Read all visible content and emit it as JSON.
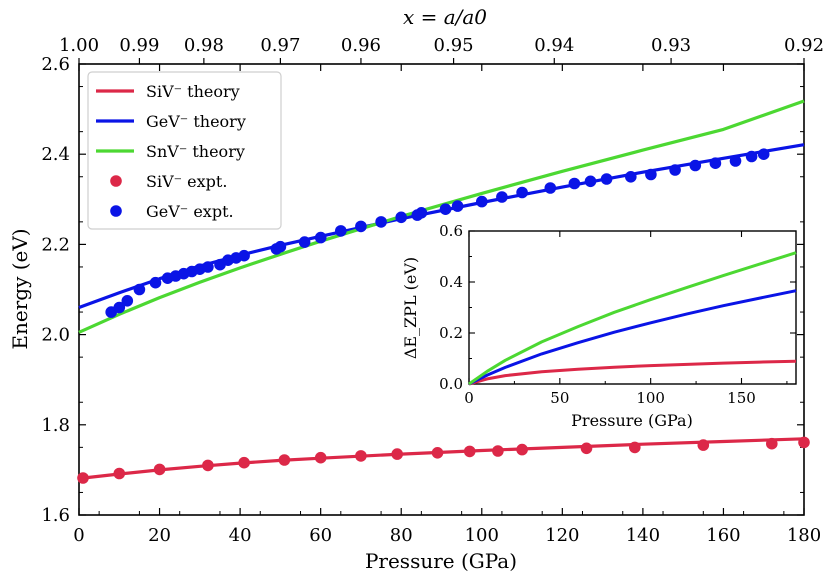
{
  "chart_data": {
    "type": "line",
    "xlabel": "Pressure (GPa)",
    "ylabel": "Energy (eV)",
    "top_xlabel": "x = a/a0",
    "xlim": [
      0,
      180
    ],
    "ylim": [
      1.6,
      2.6
    ],
    "xticks": [
      "0",
      "20",
      "40",
      "60",
      "80",
      "100",
      "120",
      "140",
      "160",
      "180"
    ],
    "yticks": [
      "1.6",
      "1.8",
      "2.0",
      "2.2",
      "2.4",
      "2.6"
    ],
    "top_ticks": [
      {
        "label": "1.00",
        "pressure": 0
      },
      {
        "label": "0.99",
        "pressure": 15
      },
      {
        "label": "0.98",
        "pressure": 31
      },
      {
        "label": "0.97",
        "pressure": 50
      },
      {
        "label": "0.96",
        "pressure": 70
      },
      {
        "label": "0.95",
        "pressure": 93
      },
      {
        "label": "0.94",
        "pressure": 118
      },
      {
        "label": "0.93",
        "pressure": 147
      },
      {
        "label": "0.92",
        "pressure": 180
      }
    ],
    "series": [
      {
        "name": "SiV⁻ theory",
        "kind": "line",
        "color": "#dc2848",
        "x": [
          0,
          10,
          20,
          30,
          40,
          50,
          60,
          80,
          100,
          120,
          140,
          160,
          180
        ],
        "y": [
          1.681,
          1.691,
          1.7,
          1.708,
          1.715,
          1.721,
          1.726,
          1.735,
          1.743,
          1.75,
          1.757,
          1.763,
          1.769
        ]
      },
      {
        "name": "GeV⁻ theory",
        "kind": "line",
        "color": "#0a14e6",
        "x": [
          0,
          10,
          20,
          30,
          40,
          50,
          60,
          80,
          100,
          120,
          140,
          160,
          180
        ],
        "y": [
          2.06,
          2.093,
          2.124,
          2.152,
          2.176,
          2.198,
          2.218,
          2.257,
          2.293,
          2.327,
          2.36,
          2.391,
          2.421
        ]
      },
      {
        "name": "SnV⁻ theory",
        "kind": "line",
        "color": "#4cd832",
        "x": [
          0,
          10,
          20,
          30,
          40,
          50,
          60,
          80,
          100,
          120,
          140,
          160,
          180
        ],
        "y": [
          2.005,
          2.045,
          2.082,
          2.116,
          2.148,
          2.178,
          2.207,
          2.262,
          2.313,
          2.362,
          2.409,
          2.455,
          2.518
        ]
      },
      {
        "name": "SiV⁻ expt.",
        "kind": "scatter",
        "color": "#dc2848",
        "x": [
          1,
          10,
          20,
          32,
          41,
          51,
          60,
          70,
          79,
          89,
          97,
          104,
          110,
          126,
          138,
          155,
          172,
          180
        ],
        "y": [
          1.682,
          1.692,
          1.701,
          1.71,
          1.716,
          1.722,
          1.727,
          1.731,
          1.735,
          1.738,
          1.741,
          1.742,
          1.745,
          1.748,
          1.75,
          1.755,
          1.758,
          1.761
        ]
      },
      {
        "name": "GeV⁻ expt.",
        "kind": "scatter",
        "color": "#0a14e6",
        "x": [
          8,
          10,
          12,
          15,
          19,
          22,
          24,
          26,
          28,
          30,
          32,
          35,
          37,
          39,
          41,
          49,
          50,
          56,
          60,
          65,
          70,
          75,
          80,
          84,
          85,
          91,
          94,
          100,
          105,
          110,
          117,
          123,
          127,
          131,
          137,
          142,
          148,
          153,
          158,
          163,
          167,
          170
        ],
        "y": [
          2.05,
          2.06,
          2.075,
          2.1,
          2.115,
          2.125,
          2.13,
          2.135,
          2.14,
          2.145,
          2.15,
          2.155,
          2.165,
          2.17,
          2.175,
          2.19,
          2.195,
          2.205,
          2.215,
          2.23,
          2.24,
          2.25,
          2.26,
          2.265,
          2.27,
          2.278,
          2.285,
          2.295,
          2.305,
          2.315,
          2.325,
          2.335,
          2.34,
          2.345,
          2.35,
          2.355,
          2.365,
          2.375,
          2.38,
          2.385,
          2.395,
          2.4
        ]
      }
    ],
    "legend": {
      "position": "top-left"
    },
    "inset": {
      "xlabel": "Pressure (GPa)",
      "ylabel": "ΔE_ZPL (eV)",
      "xlim": [
        0,
        180
      ],
      "ylim": [
        0,
        0.6
      ],
      "xticks": [
        "0",
        "50",
        "100",
        "150"
      ],
      "yticks": [
        "0.0",
        "0.2",
        "0.4",
        "0.6"
      ],
      "series": [
        {
          "name": "SiV⁻",
          "color": "#dc2848",
          "x": [
            0,
            10,
            20,
            40,
            60,
            80,
            100,
            120,
            140,
            160,
            180
          ],
          "y": [
            0,
            0.02,
            0.033,
            0.048,
            0.058,
            0.066,
            0.072,
            0.077,
            0.082,
            0.086,
            0.089
          ]
        },
        {
          "name": "GeV⁻",
          "color": "#0a14e6",
          "x": [
            0,
            10,
            20,
            40,
            60,
            80,
            100,
            120,
            140,
            160,
            180
          ],
          "y": [
            0,
            0.035,
            0.065,
            0.118,
            0.162,
            0.203,
            0.24,
            0.275,
            0.307,
            0.337,
            0.366
          ]
        },
        {
          "name": "SnV⁻",
          "color": "#4cd832",
          "x": [
            0,
            10,
            20,
            40,
            60,
            80,
            100,
            120,
            140,
            160,
            180
          ],
          "y": [
            0,
            0.05,
            0.093,
            0.165,
            0.225,
            0.281,
            0.331,
            0.379,
            0.425,
            0.47,
            0.515
          ]
        }
      ]
    }
  }
}
